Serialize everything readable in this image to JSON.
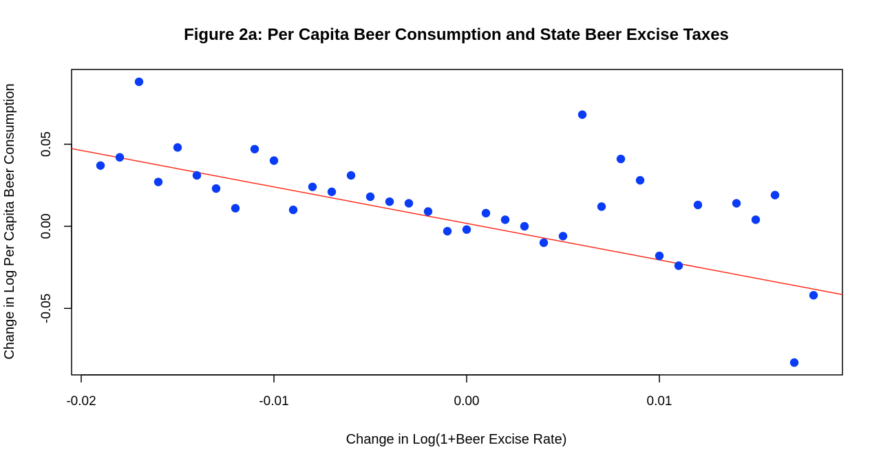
{
  "chart_data": {
    "type": "scatter",
    "title": "Figure 2a: Per Capita Beer Consumption and State Beer Excise Taxes",
    "xlabel": "Change in Log(1+Beer Excise Rate)",
    "ylabel": "Change in Log Per Capita Beer Consumption",
    "xlim": [
      -0.0205,
      0.0195
    ],
    "ylim": [
      -0.0905,
      0.0955
    ],
    "x_ticks": [
      -0.02,
      -0.01,
      0.0,
      0.01
    ],
    "x_tick_labels": [
      "-0.02",
      "-0.01",
      "0.00",
      "0.01"
    ],
    "y_ticks": [
      -0.05,
      0.0,
      0.05
    ],
    "y_tick_labels": [
      "-0.05",
      "0.00",
      "0.05"
    ],
    "grid": false,
    "points": [
      {
        "x": -0.019,
        "y": 0.037
      },
      {
        "x": -0.018,
        "y": 0.042
      },
      {
        "x": -0.017,
        "y": 0.088
      },
      {
        "x": -0.016,
        "y": 0.027
      },
      {
        "x": -0.015,
        "y": 0.048
      },
      {
        "x": -0.014,
        "y": 0.031
      },
      {
        "x": -0.013,
        "y": 0.023
      },
      {
        "x": -0.012,
        "y": 0.011
      },
      {
        "x": -0.011,
        "y": 0.047
      },
      {
        "x": -0.01,
        "y": 0.04
      },
      {
        "x": -0.009,
        "y": 0.01
      },
      {
        "x": -0.008,
        "y": 0.024
      },
      {
        "x": -0.007,
        "y": 0.021
      },
      {
        "x": -0.006,
        "y": 0.031
      },
      {
        "x": -0.005,
        "y": 0.018
      },
      {
        "x": -0.004,
        "y": 0.015
      },
      {
        "x": -0.003,
        "y": 0.014
      },
      {
        "x": -0.002,
        "y": 0.009
      },
      {
        "x": -0.001,
        "y": -0.003
      },
      {
        "x": 0.0,
        "y": -0.002
      },
      {
        "x": 0.001,
        "y": 0.008
      },
      {
        "x": 0.002,
        "y": 0.004
      },
      {
        "x": 0.003,
        "y": 0.0
      },
      {
        "x": 0.004,
        "y": -0.01
      },
      {
        "x": 0.005,
        "y": -0.006
      },
      {
        "x": 0.006,
        "y": 0.068
      },
      {
        "x": 0.007,
        "y": 0.012
      },
      {
        "x": 0.008,
        "y": 0.041
      },
      {
        "x": 0.009,
        "y": 0.028
      },
      {
        "x": 0.01,
        "y": -0.018
      },
      {
        "x": 0.011,
        "y": -0.024
      },
      {
        "x": 0.012,
        "y": 0.013
      },
      {
        "x": 0.014,
        "y": 0.014
      },
      {
        "x": 0.015,
        "y": 0.004
      },
      {
        "x": 0.016,
        "y": 0.019
      },
      {
        "x": 0.017,
        "y": -0.083
      },
      {
        "x": 0.018,
        "y": -0.042
      }
    ],
    "fit_line": {
      "type": "linear",
      "points": [
        {
          "x": -0.0205,
          "y": 0.0473
        },
        {
          "x": 0.0195,
          "y": -0.0416
        }
      ]
    },
    "colors": {
      "points": "#0a3cf5",
      "fit_line": "#ff2a1a",
      "frame": "#000000"
    }
  }
}
